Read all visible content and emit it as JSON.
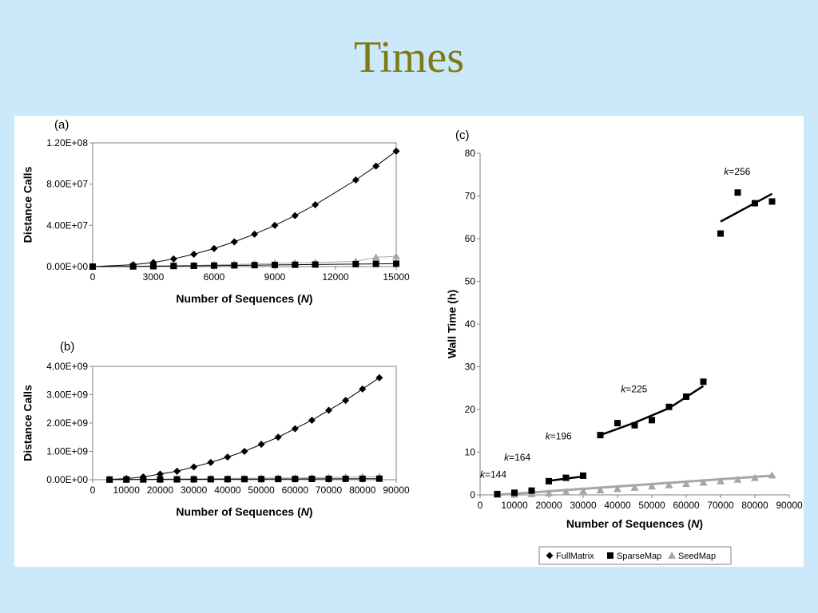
{
  "slide": {
    "title": "Times"
  },
  "legend": {
    "items": [
      "FullMatrix",
      "SparseMap",
      "SeedMap"
    ]
  },
  "chart_data": [
    {
      "id": "a",
      "label": "(a)",
      "type": "line",
      "xlabel_prefix": "Number of Sequences (",
      "xlabel_var": "N",
      "xlabel_suffix": ")",
      "ylabel": "Distance Calls",
      "xlim": [
        0,
        15000
      ],
      "ylim": [
        0,
        120000000
      ],
      "xticks": [
        "0",
        "3000",
        "6000",
        "9000",
        "12000",
        "15000"
      ],
      "yticks": [
        "0.00E+00",
        "4.00E+07",
        "8.00E+07",
        "1.20E+08"
      ],
      "series": [
        {
          "name": "FullMatrix",
          "marker": "diamond",
          "color": "#000000",
          "x": [
            0,
            2000,
            3000,
            4000,
            5000,
            6000,
            7000,
            8000,
            9000,
            10000,
            11000,
            13000,
            14000,
            15000
          ],
          "y": [
            0,
            1800000,
            4000000,
            7500000,
            12000000,
            17500000,
            24000000,
            31500000,
            40000000,
            49500000,
            60000000,
            84000000,
            97500000,
            112000000
          ]
        },
        {
          "name": "SparseMap",
          "marker": "square",
          "color": "#000000",
          "x": [
            0,
            2000,
            3000,
            4000,
            5000,
            6000,
            7000,
            8000,
            9000,
            10000,
            11000,
            13000,
            14000,
            15000
          ],
          "y": [
            0,
            200000,
            400000,
            600000,
            800000,
            1000000,
            1200000,
            1400000,
            1600000,
            1800000,
            2000000,
            2400000,
            2600000,
            2800000
          ]
        },
        {
          "name": "SeedMap",
          "marker": "triangle",
          "color": "#a6a6a6",
          "x": [
            0,
            2000,
            3000,
            4000,
            5000,
            6000,
            7000,
            8000,
            9000,
            10000,
            11000,
            13000,
            14000,
            15000
          ],
          "y": [
            0,
            300000,
            600000,
            900000,
            1200000,
            1600000,
            2000000,
            2500000,
            3000000,
            3500000,
            4000000,
            5000000,
            9000000,
            10000000
          ]
        }
      ]
    },
    {
      "id": "b",
      "label": "(b)",
      "type": "line",
      "xlabel_prefix": "Number of Sequences (",
      "xlabel_var": "N",
      "xlabel_suffix": ")",
      "ylabel": "Distance  Calls",
      "xlim": [
        0,
        90000
      ],
      "ylim": [
        0,
        4000000000
      ],
      "xticks": [
        "0",
        "10000",
        "20000",
        "30000",
        "40000",
        "50000",
        "60000",
        "70000",
        "80000",
        "90000"
      ],
      "yticks": [
        "0.00E+00",
        "1.00E+09",
        "2.00E+09",
        "3.00E+09",
        "4.00E+09"
      ],
      "series": [
        {
          "name": "FullMatrix",
          "marker": "diamond",
          "color": "#000000",
          "x": [
            5000,
            10000,
            15000,
            20000,
            25000,
            30000,
            35000,
            40000,
            45000,
            50000,
            55000,
            60000,
            65000,
            70000,
            75000,
            80000,
            85000
          ],
          "y": [
            10000000,
            40000000,
            100000000,
            200000000,
            300000000,
            450000000,
            610000000,
            800000000,
            1000000000,
            1250000000,
            1500000000,
            1800000000,
            2100000000,
            2450000000,
            2800000000,
            3200000000,
            3600000000
          ]
        },
        {
          "name": "SparseMap",
          "marker": "square",
          "color": "#000000",
          "x": [
            5000,
            10000,
            15000,
            20000,
            25000,
            30000,
            35000,
            40000,
            45000,
            50000,
            55000,
            60000,
            65000,
            70000,
            75000,
            80000,
            85000
          ],
          "y": [
            5000000,
            7000000,
            9000000,
            10000000,
            12000000,
            14000000,
            16000000,
            18000000,
            20000000,
            22000000,
            24000000,
            26000000,
            28000000,
            30000000,
            32000000,
            34000000,
            36000000
          ]
        },
        {
          "name": "SeedMap",
          "marker": "triangle",
          "color": "#a6a6a6",
          "x": [
            5000,
            10000,
            15000,
            20000,
            25000,
            30000,
            35000,
            40000,
            45000,
            50000,
            55000,
            60000,
            65000,
            70000,
            75000,
            80000,
            85000
          ],
          "y": [
            10000000,
            15000000,
            20000000,
            25000000,
            30000000,
            35000000,
            40000000,
            45000000,
            50000000,
            55000000,
            60000000,
            65000000,
            70000000,
            80000000,
            90000000,
            100000000,
            110000000
          ]
        }
      ]
    },
    {
      "id": "c",
      "label": "(c)",
      "type": "scatter",
      "xlabel_prefix": "Number of Sequences (",
      "xlabel_var": "N",
      "xlabel_suffix": ")",
      "ylabel": "Wall Time (h)",
      "xlim": [
        0,
        90000
      ],
      "ylim": [
        0,
        80
      ],
      "xticks": [
        "0",
        "10000",
        "20000",
        "30000",
        "40000",
        "50000",
        "60000",
        "70000",
        "80000",
        "90000"
      ],
      "yticks": [
        "0",
        "10",
        "20",
        "30",
        "40",
        "50",
        "60",
        "70",
        "80"
      ],
      "series": [
        {
          "name": "SparseMap",
          "marker": "square",
          "color": "#000000",
          "x": [
            5000,
            10000,
            15000,
            20000,
            25000,
            30000,
            35000,
            40000,
            45000,
            50000,
            55000,
            60000,
            65000,
            70000,
            75000,
            80000,
            85000
          ],
          "y": [
            0.2,
            0.5,
            1.0,
            3.2,
            4.0,
            4.5,
            14.0,
            16.8,
            16.3,
            17.5,
            20.6,
            23.0,
            26.5,
            61.2,
            70.8,
            68.3,
            68.7
          ]
        },
        {
          "name": "SeedMap",
          "marker": "triangle",
          "color": "#a6a6a6",
          "x": [
            5000,
            10000,
            15000,
            20000,
            25000,
            30000,
            35000,
            40000,
            45000,
            50000,
            55000,
            60000,
            65000,
            70000,
            75000,
            80000,
            85000
          ],
          "y": [
            0.05,
            0.1,
            0.2,
            0.4,
            0.7,
            0.9,
            1.1,
            1.4,
            1.7,
            2.0,
            2.3,
            2.6,
            2.9,
            3.2,
            3.6,
            4.0,
            4.6
          ]
        }
      ],
      "trendlines": [
        {
          "series": "SparseMap",
          "x": [
            20000,
            25000,
            30000
          ],
          "y": [
            3.3,
            3.8,
            4.3
          ]
        },
        {
          "series": "SparseMap",
          "x": [
            35000,
            45000,
            55000,
            65000
          ],
          "y": [
            14.0,
            16.9,
            20.3,
            25.5
          ]
        },
        {
          "series": "SparseMap",
          "x": [
            70000,
            85000
          ],
          "y": [
            64.0,
            70.5
          ]
        },
        {
          "series": "SeedMap",
          "x": [
            5000,
            85000
          ],
          "y": [
            0.0,
            4.5
          ]
        }
      ],
      "k_labels": [
        {
          "prefix": "k",
          "value": "=144",
          "x": 0,
          "y": 4
        },
        {
          "prefix": "k",
          "value": "=164",
          "x": 7000,
          "y": 8
        },
        {
          "prefix": "k",
          "value": "=196",
          "x": 19000,
          "y": 13
        },
        {
          "prefix": "k",
          "value": "=225",
          "x": 41000,
          "y": 24
        },
        {
          "prefix": "k",
          "value": "=256",
          "x": 71000,
          "y": 75
        }
      ]
    }
  ]
}
